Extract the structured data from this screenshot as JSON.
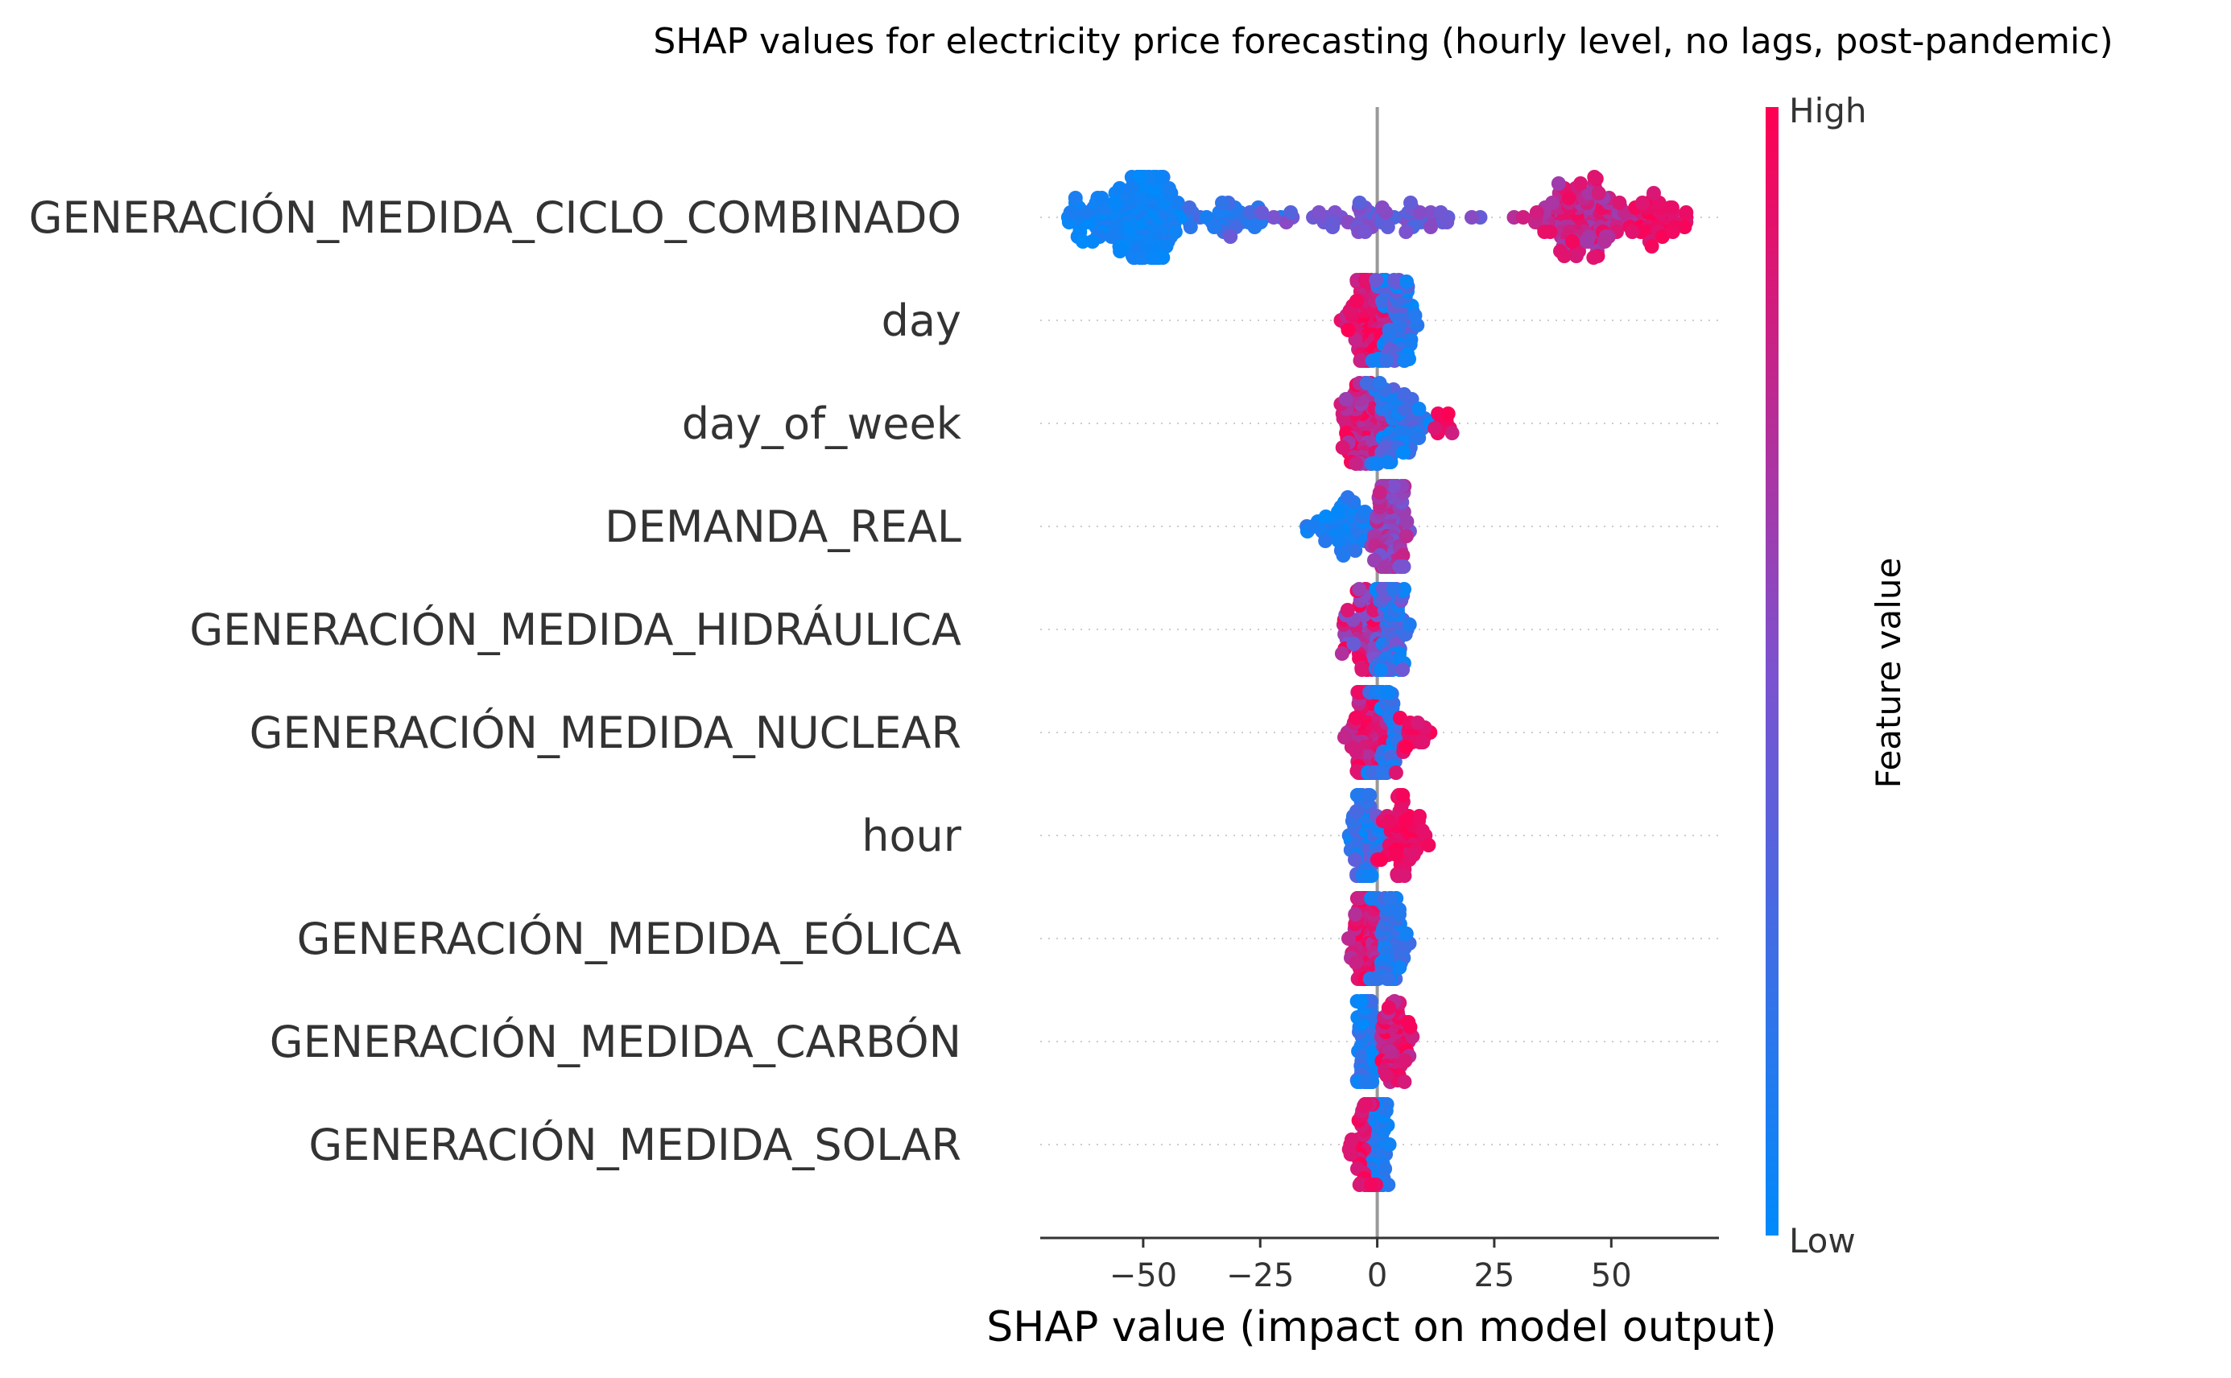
{
  "chart_data": {
    "type": "scatter",
    "subtype": "shap-beeswarm",
    "title": "SHAP values for electricity price forecasting (hourly level, no lags, post-pandemic)",
    "xlabel": "SHAP value (impact on model output)",
    "xlim": [
      -72,
      73
    ],
    "xticks": [
      -50,
      -25,
      0,
      25,
      50
    ],
    "xtick_labels": [
      "−50",
      "−25",
      "0",
      "25",
      "50"
    ],
    "colorbar": {
      "title": "Feature value",
      "high_label": "High",
      "low_label": "Low",
      "color_low": "#008afb",
      "color_mid": "#7c52cf",
      "color_high": "#ff0052"
    },
    "features": [
      {
        "name": "GENERACIÓN_MEDIDA_CICLO_COMBINADO",
        "clusters": [
          {
            "center": -50,
            "spread": 7,
            "count": 150,
            "color_min": 0.0,
            "color_max": 0.12
          },
          {
            "center": -60,
            "spread": 5,
            "count": 40,
            "color_min": 0.0,
            "color_max": 0.12
          },
          {
            "center": -32,
            "spread": 10,
            "count": 40,
            "color_min": 0.08,
            "color_max": 0.3
          },
          {
            "center": 0,
            "spread": 18,
            "count": 60,
            "color_min": 0.3,
            "color_max": 0.6
          },
          {
            "center": 45,
            "spread": 10,
            "count": 130,
            "color_min": 0.62,
            "color_max": 0.95
          },
          {
            "center": 60,
            "spread": 5,
            "count": 40,
            "color_min": 0.85,
            "color_max": 1.0
          }
        ],
        "range": [
          -66,
          66
        ]
      },
      {
        "name": "day",
        "clusters": [
          {
            "center": -3,
            "spread": 4,
            "count": 90,
            "color_min": 0.75,
            "color_max": 1.0
          },
          {
            "center": 4,
            "spread": 4,
            "count": 80,
            "color_min": 0.0,
            "color_max": 0.45
          }
        ],
        "range": [
          -11,
          12
        ]
      },
      {
        "name": "day_of_week",
        "clusters": [
          {
            "center": -3,
            "spread": 4,
            "count": 90,
            "color_min": 0.6,
            "color_max": 1.0
          },
          {
            "center": 5,
            "spread": 5,
            "count": 70,
            "color_min": 0.0,
            "color_max": 0.4
          },
          {
            "center": 14,
            "spread": 2,
            "count": 10,
            "color_min": 0.8,
            "color_max": 1.0
          }
        ],
        "range": [
          -9,
          16
        ]
      },
      {
        "name": "DEMANDA_REAL",
        "clusters": [
          {
            "center": -6,
            "spread": 6,
            "count": 60,
            "color_min": 0.0,
            "color_max": 0.2
          },
          {
            "center": 3,
            "spread": 3,
            "count": 100,
            "color_min": 0.45,
            "color_max": 0.8
          }
        ],
        "range": [
          -17,
          8
        ]
      },
      {
        "name": "GENERACIÓN_MEDIDA_HIDRÁULICA",
        "clusters": [
          {
            "center": -3,
            "spread": 4,
            "count": 70,
            "color_min": 0.4,
            "color_max": 1.0
          },
          {
            "center": 3,
            "spread": 3,
            "count": 90,
            "color_min": 0.0,
            "color_max": 0.5
          }
        ],
        "range": [
          -9,
          8
        ]
      },
      {
        "name": "GENERACIÓN_MEDIDA_NUCLEAR",
        "clusters": [
          {
            "center": -2,
            "spread": 3,
            "count": 110,
            "color_min": 0.7,
            "color_max": 1.0
          },
          {
            "center": 2,
            "spread": 3,
            "count": 60,
            "color_min": 0.0,
            "color_max": 0.3
          },
          {
            "center": 8,
            "spread": 3,
            "count": 20,
            "color_min": 0.85,
            "color_max": 1.0
          }
        ],
        "range": [
          -7,
          12
        ]
      },
      {
        "name": "hour",
        "clusters": [
          {
            "center": -2,
            "spread": 3,
            "count": 80,
            "color_min": 0.0,
            "color_max": 0.45
          },
          {
            "center": 6,
            "spread": 4,
            "count": 60,
            "color_min": 0.85,
            "color_max": 1.0
          }
        ],
        "range": [
          -6,
          14
        ]
      },
      {
        "name": "GENERACIÓN_MEDIDA_EÓLICA",
        "clusters": [
          {
            "center": -3,
            "spread": 3,
            "count": 100,
            "color_min": 0.7,
            "color_max": 1.0
          },
          {
            "center": 3,
            "spread": 3,
            "count": 70,
            "color_min": 0.0,
            "color_max": 0.3
          }
        ],
        "range": [
          -9,
          7
        ]
      },
      {
        "name": "GENERACIÓN_MEDIDA_CARBÓN",
        "clusters": [
          {
            "center": -2,
            "spread": 2,
            "count": 80,
            "color_min": 0.0,
            "color_max": 0.3
          },
          {
            "center": 4,
            "spread": 3,
            "count": 60,
            "color_min": 0.7,
            "color_max": 1.0
          }
        ],
        "range": [
          -5,
          8
        ]
      },
      {
        "name": "GENERACIÓN_MEDIDA_SOLAR",
        "clusters": [
          {
            "center": 0,
            "spread": 2,
            "count": 100,
            "color_min": 0.0,
            "color_max": 0.25
          },
          {
            "center": -3,
            "spread": 2,
            "count": 40,
            "color_min": 0.8,
            "color_max": 1.0
          }
        ],
        "range": [
          -6,
          4
        ]
      }
    ]
  }
}
